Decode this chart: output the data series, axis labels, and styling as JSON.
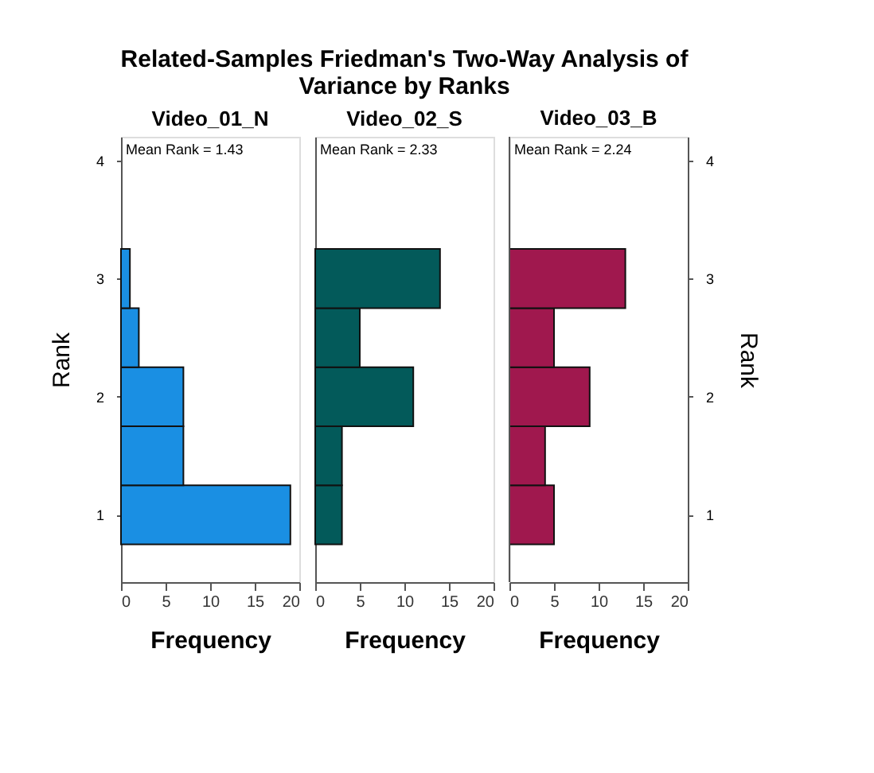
{
  "chart_data": [
    {
      "type": "histogram",
      "orientation": "horizontal",
      "title": "Video_01_N",
      "annotations": [
        "Related-Samples Friedman's Two-Way Analysis of Variance by Ranks",
        "Mean Rank = 1.43"
      ],
      "xlabel": "Frequency",
      "ylabel": "Rank",
      "bins": [
        0.75,
        1.25,
        1.75,
        2.25,
        2.75,
        3.25
      ],
      "values": [
        19,
        7,
        7,
        2,
        1
      ],
      "color": "#1a8fe3",
      "xlim": [
        0,
        20
      ],
      "xticks": [
        0,
        5,
        10,
        15,
        20
      ],
      "ylim": [
        0.43,
        4.2
      ],
      "yticks": [
        1,
        2,
        3,
        4
      ],
      "grid": false
    },
    {
      "type": "histogram",
      "orientation": "horizontal",
      "title": "Video_02_S",
      "annotations": [
        "Mean Rank = 2.33"
      ],
      "xlabel": "Frequency",
      "bins": [
        0.75,
        1.25,
        1.75,
        2.25,
        2.75,
        3.25
      ],
      "values": [
        3,
        3,
        11,
        5,
        14
      ],
      "color": "#035a5a",
      "xlim": [
        0,
        20
      ],
      "xticks": [
        0,
        5,
        10,
        15,
        20
      ],
      "ylim": [
        0.43,
        4.2
      ],
      "yticks": [
        1,
        2,
        3,
        4
      ],
      "tick_labels": "x",
      "grid": false
    },
    {
      "type": "histogram",
      "orientation": "horizontal",
      "title": "Video_03_B",
      "annotations": [
        "Mean Rank = 2.24"
      ],
      "xlabel": "Frequency",
      "ylabel": "Rank",
      "bins": [
        0.75,
        1.25,
        1.75,
        2.25,
        2.75,
        3.25
      ],
      "values": [
        5,
        4,
        9,
        5,
        13
      ],
      "color": "#a0184e",
      "xlim": [
        0,
        20
      ],
      "xticks": [
        0,
        5,
        10,
        15,
        20
      ],
      "ylim": [
        0.43,
        4.2
      ],
      "yticks": [
        1,
        2,
        3,
        4
      ],
      "grid": false
    }
  ]
}
